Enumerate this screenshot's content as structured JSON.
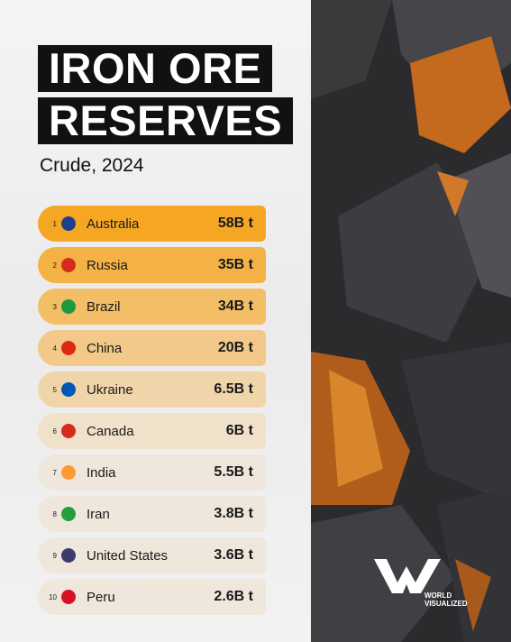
{
  "header": {
    "title_lines": [
      "IRON ORE",
      "RESERVES"
    ],
    "subtitle": "Crude, 2024"
  },
  "rows": [
    {
      "rank": 1,
      "country": "Australia",
      "value": "58B t"
    },
    {
      "rank": 2,
      "country": "Russia",
      "value": "35B t"
    },
    {
      "rank": 3,
      "country": "Brazil",
      "value": "34B t"
    },
    {
      "rank": 4,
      "country": "China",
      "value": "20B t"
    },
    {
      "rank": 5,
      "country": "Ukraine",
      "value": "6.5B t"
    },
    {
      "rank": 6,
      "country": "Canada",
      "value": "6B t"
    },
    {
      "rank": 7,
      "country": "India",
      "value": "5.5B t"
    },
    {
      "rank": 8,
      "country": "Iran",
      "value": "3.8B t"
    },
    {
      "rank": 9,
      "country": "United States",
      "value": "3.6B t"
    },
    {
      "rank": 10,
      "country": "Peru",
      "value": "2.6B t"
    }
  ],
  "logo": {
    "line1": "WORLD",
    "line2": "VISUALIZED"
  }
}
